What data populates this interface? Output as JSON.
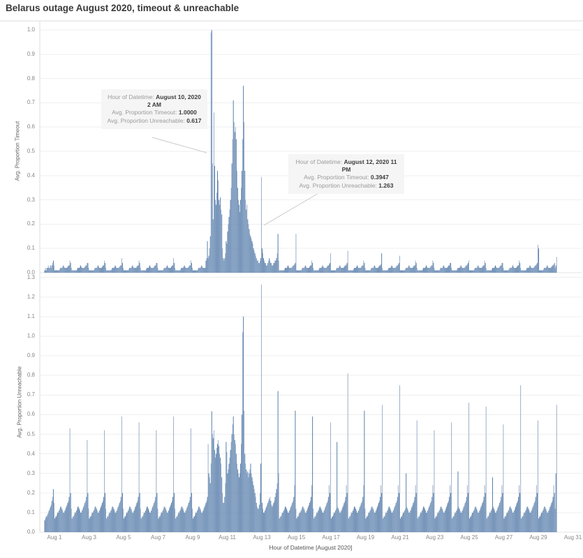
{
  "title": "Belarus outage August 2020, timeout & unreachable",
  "top_chart": {
    "ylabel": "Avg. Proportion Timeout",
    "ymax": 1.0,
    "yticks": [
      "1.0",
      "0.9",
      "0.8",
      "0.7",
      "0.6",
      "0.5",
      "0.4",
      "0.3",
      "0.2",
      "0.1",
      "0.0"
    ]
  },
  "bottom_chart": {
    "ylabel": "Avg. Proportion Unreachable",
    "ymax": 1.3,
    "yticks": [
      "1.3",
      "1.2",
      "1.1",
      "1.0",
      "0.9",
      "0.8",
      "0.7",
      "0.6",
      "0.5",
      "0.4",
      "0.3",
      "0.2",
      "0.1",
      "0.0"
    ]
  },
  "x_axis": {
    "title": "Hour of Datetime [August 2020]",
    "labels": [
      "Aug 1",
      "Aug 3",
      "Aug 5",
      "Aug 7",
      "Aug 9",
      "Aug 11",
      "Aug 13",
      "Aug 15",
      "Aug 17",
      "Aug 19",
      "Aug 21",
      "Aug 23",
      "Aug 25",
      "Aug 27",
      "Aug 29",
      "Aug 31"
    ]
  },
  "annotations": [
    {
      "l1": "Hour of Datetime: ",
      "v1": "August 10, 2020 2 AM",
      "l2": "Avg. Proportion Timeout: ",
      "v2": "1.0000",
      "l3": "Avg. Proportion Unreachable: ",
      "v3": "0.617"
    },
    {
      "l1": "Hour of Datetime: ",
      "v1": "August 12, 2020 11 PM",
      "l2": "Avg. Proportion Timeout: ",
      "v2": "0.3947",
      "l3": "Avg. Proportion Unreachable: ",
      "v3": "1.263"
    }
  ],
  "colors": {
    "bar_dark": "#4672a4",
    "bar_light": "#8fa6c4",
    "grid": "#efefef",
    "axis_line": "#dcdcdc",
    "zero_line": "#e4e4e4",
    "tick_text": "#878787",
    "leader": "#cbcbcb",
    "annotation_bg": "#f5f5f5"
  },
  "chart_data": {
    "type": "bar",
    "x_unit": "hour of datetime, August 2020",
    "grid": true,
    "series_names": [
      "Avg. Proportion Timeout",
      "Avg. Proportion Unreachable"
    ],
    "ylim_timeout": [
      0,
      1.0
    ],
    "ylim_unreachable": [
      0,
      1.3
    ],
    "base_day_pattern": {
      "timeout": [
        0.01,
        0.01,
        0.01,
        0.01,
        0.01,
        0.01,
        0.01,
        0.015,
        0.02,
        0.02,
        0.02,
        0.025,
        0.03,
        0.025,
        0.02,
        0.02,
        0.02,
        0.02,
        0.025,
        0.03,
        0.03,
        0.035,
        0.04,
        0.02
      ],
      "unreachable": [
        0.07,
        0.08,
        0.08,
        0.09,
        0.1,
        0.1,
        0.11,
        0.12,
        0.13,
        0.13,
        0.12,
        0.11,
        0.1,
        0.1,
        0.11,
        0.12,
        0.13,
        0.14,
        0.15,
        0.16,
        0.18,
        0.24,
        0.2,
        0.12
      ]
    },
    "pre_day": {
      "d": "Jul 31 (partial, hours 10-23)",
      "t": [
        0.01,
        0.02,
        0.01,
        0.02,
        0.02,
        0.03,
        0.02,
        0.02,
        0.03,
        0.02,
        0.03,
        0.04,
        0.05,
        0.03
      ],
      "u": [
        0.06,
        0.07,
        0.08,
        0.08,
        0.09,
        0.1,
        0.11,
        0.12,
        0.13,
        0.14,
        0.16,
        0.18,
        0.22,
        0.15
      ]
    },
    "days": [
      {
        "d": "Aug 1",
        "t": {
          "21": 0.05
        },
        "u": {
          "21": 0.53
        }
      },
      {
        "d": "Aug 2",
        "t": {
          "21": 0.04
        },
        "u": {
          "21": 0.47
        }
      },
      {
        "d": "Aug 3",
        "t": {
          "21": 0.05
        },
        "u": {
          "21": 0.52
        }
      },
      {
        "d": "Aug 4",
        "t": {
          "21": 0.06
        },
        "u": {
          "21": 0.59
        }
      },
      {
        "d": "Aug 5",
        "t": {
          "21": 0.05
        },
        "u": {
          "21": 0.56
        }
      },
      {
        "d": "Aug 6",
        "t": {
          "21": 0.04
        },
        "u": {
          "21": 0.52
        }
      },
      {
        "d": "Aug 7",
        "t": {
          "21": 0.06
        },
        "u": {
          "21": 0.59
        }
      },
      {
        "d": "Aug 8",
        "t": {
          "21": 0.05
        },
        "u": {
          "21": 0.53
        }
      },
      {
        "d": "Aug 9",
        "t": {
          "18": 0.05,
          "19": 0.06,
          "20": 0.13,
          "21": 0.06,
          "22": 0.07,
          "23": 0.1
        },
        "u": {
          "21": 0.45,
          "22": 0.3,
          "23": 0.28
        }
      },
      {
        "d": "Aug 10",
        "t": [
          0.15,
          0.99,
          1.0,
          0.45,
          0.22,
          0.66,
          0.44,
          0.3,
          0.28,
          0.33,
          0.42,
          0.38,
          0.3,
          0.28,
          0.31,
          0.26,
          0.24,
          0.1,
          0.06,
          0.05,
          0.06,
          0.08,
          0.13,
          0.12
        ],
        "u": [
          0.25,
          0.35,
          0.617,
          0.5,
          0.48,
          0.52,
          0.42,
          0.38,
          0.4,
          0.43,
          0.45,
          0.47,
          0.44,
          0.4,
          0.38,
          0.35,
          0.28,
          0.2,
          0.15,
          0.15,
          0.18,
          0.25,
          0.46,
          0.41
        ]
      },
      {
        "d": "Aug 11",
        "t": [
          0.17,
          0.2,
          0.23,
          0.26,
          0.3,
          0.35,
          0.45,
          0.55,
          0.71,
          0.62,
          0.58,
          0.6,
          0.55,
          0.42,
          0.35,
          0.3,
          0.28,
          0.25,
          0.3,
          0.35,
          0.42,
          0.55,
          0.77,
          0.62
        ],
        "u": [
          0.3,
          0.32,
          0.35,
          0.38,
          0.42,
          0.46,
          0.5,
          0.55,
          0.59,
          0.5,
          0.47,
          0.45,
          0.4,
          0.35,
          0.32,
          0.3,
          0.28,
          0.3,
          0.35,
          0.45,
          0.6,
          1.02,
          1.1,
          0.62
        ]
      },
      {
        "d": "Aug 12",
        "t": [
          0.42,
          0.3,
          0.26,
          0.28,
          0.22,
          0.2,
          0.18,
          0.16,
          0.15,
          0.14,
          0.13,
          0.12,
          0.1,
          0.09,
          0.08,
          0.07,
          0.06,
          0.05,
          0.05,
          0.04,
          0.04,
          0.05,
          0.06,
          0.3947
        ],
        "u": [
          0.4,
          0.35,
          0.32,
          0.3,
          0.31,
          0.28,
          0.3,
          0.32,
          0.35,
          0.3,
          0.28,
          0.26,
          0.24,
          0.22,
          0.2,
          0.18,
          0.15,
          0.13,
          0.12,
          0.12,
          0.14,
          0.2,
          0.35,
          1.263
        ]
      },
      {
        "d": "Aug 13",
        "t": [
          0.1,
          0.08,
          0.06,
          0.05,
          0.04,
          0.04,
          0.03,
          0.03,
          0.04,
          0.05,
          0.06,
          0.05,
          0.04,
          0.04,
          0.03,
          0.03,
          0.04,
          0.04,
          0.05,
          0.05,
          0.06,
          0.08,
          0.16,
          0.05
        ],
        "u": [
          0.15,
          0.12,
          0.1,
          0.1,
          0.11,
          0.12,
          0.13,
          0.14,
          0.15,
          0.16,
          0.17,
          0.18,
          0.16,
          0.14,
          0.13,
          0.14,
          0.15,
          0.16,
          0.18,
          0.2,
          0.22,
          0.25,
          0.72,
          0.3
        ]
      },
      {
        "d": "Aug 14",
        "t": {
          "23": 0.16
        },
        "u": {
          "22": 0.62
        }
      },
      {
        "d": "Aug 15",
        "t": {
          "21": 0.05
        },
        "u": {
          "22": 0.59
        }
      },
      {
        "d": "Aug 16",
        "t": {
          "23": 0.08
        },
        "u": {
          "23": 0.56
        }
      },
      {
        "d": "Aug 17",
        "t": {
          "23": 0.09
        },
        "u": {
          "8": 0.46,
          "23": 0.81
        }
      },
      {
        "d": "Aug 18",
        "t": {
          "21": 0.05
        },
        "u": {
          "22": 0.62
        }
      },
      {
        "d": "Aug 19",
        "t": {
          "22": 0.08
        },
        "u": {
          "23": 0.65
        }
      },
      {
        "d": "Aug 20",
        "t": {
          "23": 0.07
        },
        "u": {
          "23": 0.75
        }
      },
      {
        "d": "Aug 21",
        "t": {
          "21": 0.05
        },
        "u": {
          "8": 0.3,
          "23": 0.57
        }
      },
      {
        "d": "Aug 22",
        "t": {
          "21": 0.05
        },
        "u": {
          "23": 0.52
        }
      },
      {
        "d": "Aug 23",
        "t": {
          "21": 0.04
        },
        "u": {
          "23": 0.56
        }
      },
      {
        "d": "Aug 24",
        "t": {
          "23": 0.05
        },
        "u": {
          "8": 0.31,
          "23": 0.66
        }
      },
      {
        "d": "Aug 25",
        "t": {
          "21": 0.05
        },
        "u": {
          "23": 0.64
        }
      },
      {
        "d": "Aug 26",
        "t": {
          "21": 0.04
        },
        "u": {
          "8": 0.28,
          "23": 0.55
        }
      },
      {
        "d": "Aug 27",
        "t": {
          "21": 0.05
        },
        "u": {
          "23": 0.75
        }
      },
      {
        "d": "Aug 28",
        "t": {
          "23": 0.115
        },
        "u": {
          "23": 0.57
        }
      },
      {
        "d": "Aug 29",
        "t": {
          "0": 0.1
        },
        "u": {}
      },
      {
        "d": "Aug 30",
        "t": [
          0.03,
          0.065
        ],
        "u": [
          0.3,
          0.65
        ]
      }
    ],
    "highlighted_points": [
      {
        "label": "August 10, 2020 2 AM",
        "timeout": 1.0,
        "unreachable": 0.617
      },
      {
        "label": "August 12, 2020 11 PM",
        "timeout": 0.3947,
        "unreachable": 1.263
      }
    ]
  }
}
